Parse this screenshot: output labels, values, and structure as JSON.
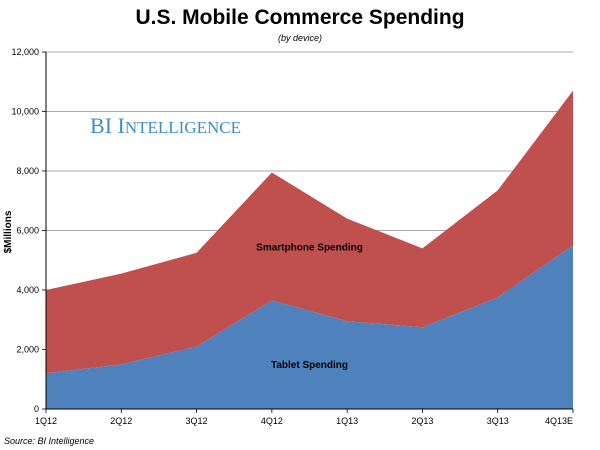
{
  "chart_data": {
    "type": "area",
    "stacked": true,
    "title": "U.S. Mobile Commerce Spending",
    "subtitle": "(by device)",
    "xlabel": "",
    "ylabel": "$Millions",
    "ylim": [
      0,
      12000
    ],
    "yticks": [
      0,
      2000,
      4000,
      6000,
      8000,
      10000,
      12000
    ],
    "ytick_labels": [
      "0",
      "2,000",
      "4,000",
      "6,000",
      "8,000",
      "10,000",
      "12,000"
    ],
    "categories": [
      "1Q12",
      "2Q12",
      "3Q12",
      "4Q12",
      "1Q13",
      "2Q13",
      "3Q13",
      "4Q13E"
    ],
    "grid": true,
    "series": [
      {
        "name": "Tablet Spending",
        "label": "Tablet Spending",
        "color": "#4f81bd",
        "values": [
          1200,
          1500,
          2100,
          3650,
          2950,
          2750,
          3750,
          5500
        ]
      },
      {
        "name": "Smartphone Spending",
        "label": "Smartphone Spending",
        "color": "#c0504d",
        "values": [
          2800,
          3050,
          3150,
          4300,
          3450,
          2650,
          3600,
          5200
        ]
      }
    ],
    "watermark": "BI Intelligence",
    "source": "Source: BI Intelligence"
  }
}
